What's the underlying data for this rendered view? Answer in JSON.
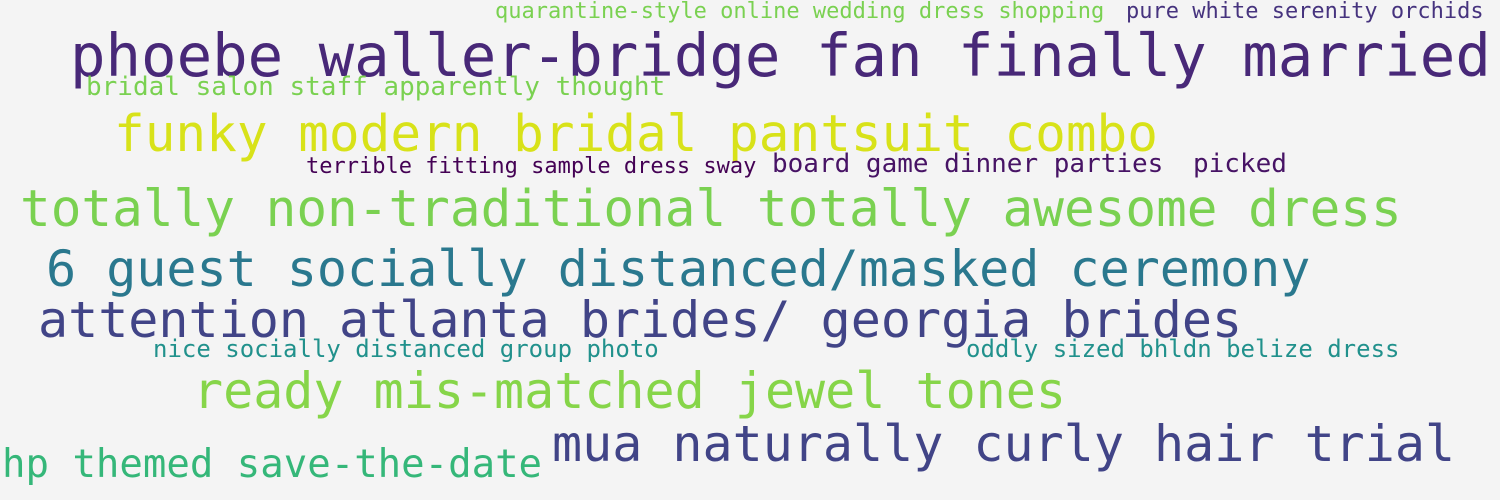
{
  "cloud": {
    "words": [
      {
        "text": "quarantine-style online wedding dress shopping",
        "color": "#7ad151"
      },
      {
        "text": "pure white serenity orchids",
        "color": "#46337e"
      },
      {
        "text": "phoebe waller-bridge fan finally married",
        "color": "#482878"
      },
      {
        "text": "bridal salon staff apparently thought",
        "color": "#7ad151"
      },
      {
        "text": "funky modern bridal pantsuit combo",
        "color": "#d8e219"
      },
      {
        "text": "terrible fitting sample dress sway",
        "color": "#440154"
      },
      {
        "text": "board game dinner parties",
        "color": "#471365"
      },
      {
        "text": "picked",
        "color": "#471365"
      },
      {
        "text": "totally non-traditional totally awesome dress",
        "color": "#7ad151"
      },
      {
        "text": "6 guest socially distanced/masked ceremony",
        "color": "#2a788e"
      },
      {
        "text": "attention atlanta brides/ georgia brides",
        "color": "#414487"
      },
      {
        "text": "nice socially distanced group photo",
        "color": "#21918c"
      },
      {
        "text": "oddly sized bhldn belize dress",
        "color": "#21918c"
      },
      {
        "text": "ready mis-matched jewel tones",
        "color": "#86d549"
      },
      {
        "text": "mua naturally curly hair trial",
        "color": "#414487"
      },
      {
        "text": "hp themed save-the-date",
        "color": "#35b779"
      }
    ]
  }
}
